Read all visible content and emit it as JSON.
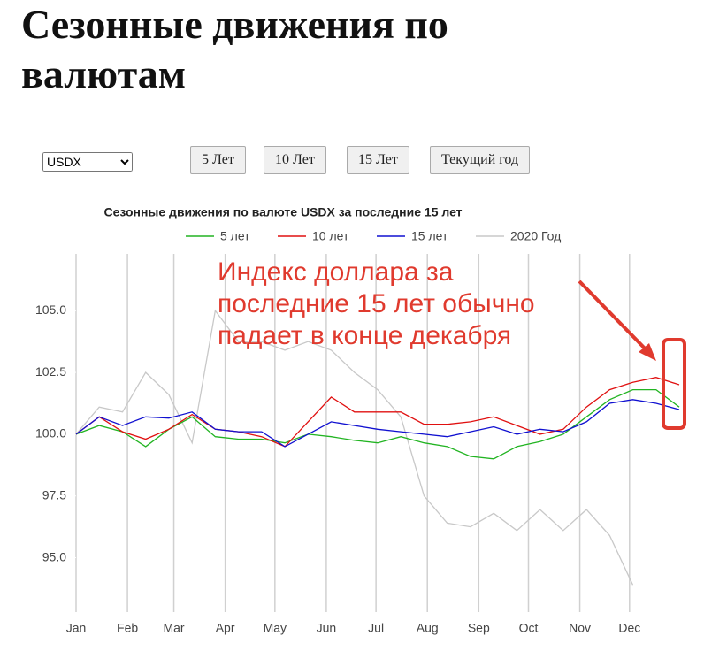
{
  "header": {
    "title": "Сезонные движения по валютам"
  },
  "controls": {
    "select": "USDX",
    "buttons": [
      "5 Лет",
      "10 Лет",
      "15 Лет",
      "Текущий год"
    ]
  },
  "chart_data": {
    "type": "line",
    "title": "Сезонные движения по валюте USDX за последние 15 лет",
    "annotation": "Индекс доллара за последние 15 лет обычно падает в конце декабря",
    "x": [
      0,
      14,
      28,
      42,
      56,
      70,
      84,
      98,
      112,
      126,
      140,
      154,
      168,
      182,
      196,
      210,
      224,
      238,
      252,
      266,
      280,
      294,
      308,
      322,
      336,
      350,
      364
    ],
    "xlim": [
      0,
      364
    ],
    "xticks": [
      {
        "value": 0,
        "label": "Jan"
      },
      {
        "value": 31,
        "label": "Feb"
      },
      {
        "value": 59,
        "label": "Mar"
      },
      {
        "value": 90,
        "label": "Apr"
      },
      {
        "value": 120,
        "label": "May"
      },
      {
        "value": 151,
        "label": "Jun"
      },
      {
        "value": 181,
        "label": "Jul"
      },
      {
        "value": 212,
        "label": "Aug"
      },
      {
        "value": 243,
        "label": "Sep"
      },
      {
        "value": 273,
        "label": "Oct"
      },
      {
        "value": 304,
        "label": "Nov"
      },
      {
        "value": 334,
        "label": "Dec"
      }
    ],
    "ylim": [
      92.8,
      107.3
    ],
    "yticks": [
      {
        "value": 95,
        "label": "95.0"
      },
      97.5,
      {
        "value": 100,
        "label": "100.0"
      },
      102.5,
      {
        "value": 105,
        "label": "105.0"
      }
    ],
    "grid": true,
    "series": [
      {
        "name": "5 лет",
        "color": "#22b422",
        "values": [
          100.0,
          100.35,
          100.1,
          99.5,
          100.2,
          100.7,
          99.9,
          99.8,
          99.8,
          99.65,
          100.0,
          99.9,
          99.75,
          99.65,
          99.9,
          99.65,
          99.5,
          99.1,
          99.0,
          99.5,
          99.7,
          100.0,
          100.7,
          101.4,
          101.8,
          101.8,
          101.1
        ]
      },
      {
        "name": "10 лет",
        "color": "#e01010",
        "values": [
          100.0,
          100.7,
          100.1,
          99.8,
          100.2,
          100.8,
          100.2,
          100.1,
          99.9,
          99.5,
          100.5,
          101.5,
          100.9,
          100.9,
          100.9,
          100.4,
          100.4,
          100.5,
          100.7,
          100.35,
          100.0,
          100.2,
          101.1,
          101.8,
          102.1,
          102.3,
          102.0
        ]
      },
      {
        "name": "15 лет",
        "color": "#1010d0",
        "values": [
          100.0,
          100.7,
          100.35,
          100.7,
          100.65,
          100.9,
          100.2,
          100.1,
          100.1,
          99.5,
          100.0,
          100.5,
          100.35,
          100.2,
          100.1,
          100.0,
          99.9,
          100.1,
          100.3,
          100.0,
          100.2,
          100.1,
          100.5,
          101.25,
          101.4,
          101.25,
          101.0
        ]
      },
      {
        "name": "2020 Год",
        "color": "#c8c8c8",
        "values": [
          100.0,
          101.1,
          100.9,
          102.5,
          101.6,
          99.65,
          105.0,
          103.75,
          103.75,
          103.4,
          103.75,
          103.4,
          102.5,
          101.8,
          100.7,
          97.5,
          96.4,
          96.25,
          96.8,
          96.1,
          96.95,
          96.1,
          96.95,
          95.9,
          93.9,
          null,
          null
        ]
      }
    ]
  }
}
